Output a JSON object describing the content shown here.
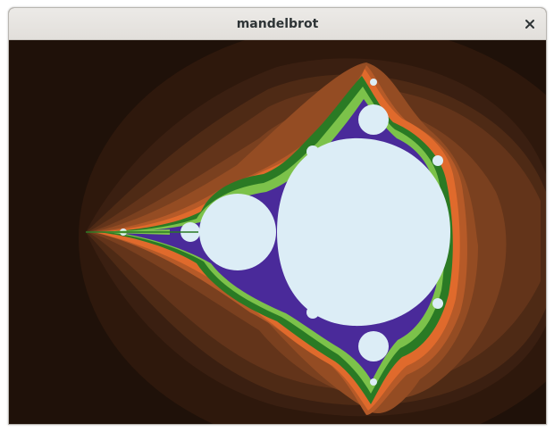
{
  "window": {
    "title": "mandelbrot"
  },
  "icons": {
    "close": "close-icon"
  },
  "colors": {
    "background": "#1f1109",
    "interior": "#dcedf6",
    "green_dark": "#2a7a24",
    "green_light": "#7cc24a",
    "orange": "#e06a2c",
    "brown_bands": [
      "#3a1f11",
      "#4e2a15",
      "#63341a",
      "#7a401f",
      "#944c23",
      "#b65a28"
    ],
    "fringe": "#4a2a9a"
  }
}
